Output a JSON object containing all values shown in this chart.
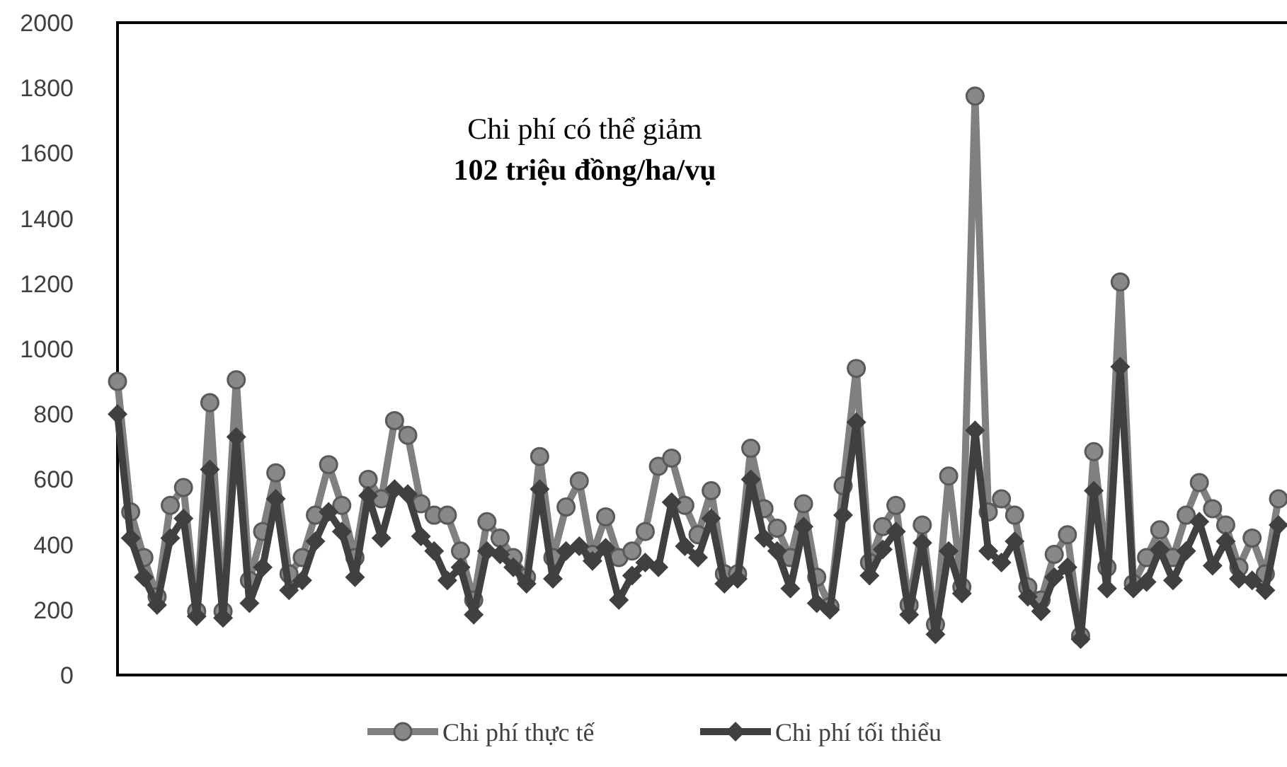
{
  "chart_data": {
    "type": "line",
    "categories": [
      null,
      null,
      null,
      null,
      null,
      null,
      null,
      null,
      null,
      null,
      null,
      null,
      null,
      null,
      null,
      null,
      null,
      null,
      null,
      null,
      null,
      null,
      null,
      null,
      null,
      null,
      null,
      null,
      null,
      null,
      null,
      null,
      null,
      null,
      null,
      null,
      null,
      null,
      null,
      null,
      null,
      null,
      null,
      null,
      null,
      null,
      null,
      null,
      null,
      null,
      null,
      null,
      null,
      null,
      null,
      null,
      null,
      null,
      null,
      null,
      null,
      null,
      null,
      null,
      null,
      null,
      null,
      null,
      null,
      null,
      null,
      null,
      null,
      null,
      null,
      null,
      null,
      null,
      null,
      null,
      null,
      null,
      null,
      null,
      null,
      null,
      null,
      null,
      null
    ],
    "series": [
      {
        "name": "Chi phí thực tế",
        "color": "#808080",
        "marker": "circle",
        "values": [
          900,
          500,
          360,
          240,
          520,
          575,
          195,
          835,
          195,
          905,
          290,
          440,
          620,
          310,
          360,
          490,
          645,
          520,
          360,
          600,
          540,
          780,
          735,
          525,
          490,
          490,
          380,
          230,
          470,
          420,
          360,
          300,
          670,
          360,
          515,
          595,
          370,
          485,
          360,
          380,
          440,
          640,
          665,
          520,
          430,
          565,
          310,
          310,
          695,
          510,
          450,
          360,
          525,
          300,
          210,
          580,
          940,
          345,
          455,
          520,
          215,
          460,
          155,
          610,
          270,
          1775,
          500,
          540,
          490,
          270,
          230,
          370,
          430,
          120,
          685,
          330,
          1205,
          280,
          360,
          445,
          360,
          490,
          590,
          510,
          460,
          330,
          420,
          310,
          540
        ]
      },
      {
        "name": "Chi phí tối thiểu",
        "color": "#404040",
        "marker": "diamond",
        "values": [
          800,
          420,
          300,
          215,
          420,
          480,
          180,
          630,
          175,
          730,
          220,
          330,
          540,
          260,
          290,
          410,
          500,
          440,
          300,
          550,
          420,
          570,
          555,
          425,
          380,
          290,
          330,
          185,
          380,
          370,
          330,
          280,
          570,
          295,
          380,
          395,
          350,
          390,
          230,
          305,
          345,
          330,
          530,
          395,
          360,
          480,
          280,
          295,
          600,
          420,
          380,
          265,
          455,
          220,
          200,
          490,
          775,
          305,
          385,
          440,
          185,
          405,
          125,
          380,
          250,
          750,
          380,
          345,
          410,
          240,
          195,
          300,
          330,
          110,
          565,
          265,
          945,
          265,
          285,
          385,
          290,
          380,
          470,
          335,
          410,
          295,
          290,
          260,
          460
        ]
      }
    ],
    "ylim": [
      0,
      2000
    ],
    "yticks": [
      0,
      200,
      400,
      600,
      800,
      1000,
      1200,
      1400,
      1600,
      1800,
      2000
    ],
    "grid": false,
    "legend": "bottom",
    "tick_labels": "y",
    "annotations": [
      "Chi phí có thể giảm",
      "102 triệu đồng/ha/vụ"
    ]
  }
}
